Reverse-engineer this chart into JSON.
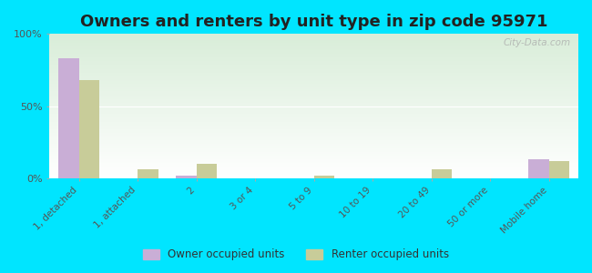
{
  "title": "Owners and renters by unit type in zip code 95971",
  "categories": [
    "1, detached",
    "1, attached",
    "2",
    "3 or 4",
    "5 to 9",
    "10 to 19",
    "20 to 49",
    "50 or more",
    "Mobile home"
  ],
  "owner_values": [
    83,
    0,
    2,
    0,
    0,
    0,
    0,
    0,
    13
  ],
  "renter_values": [
    68,
    6,
    10,
    0,
    2,
    0,
    6,
    0,
    12
  ],
  "owner_color": "#c9aed6",
  "renter_color": "#c8cc99",
  "background_color": "#00e5ff",
  "ylim": [
    0,
    100
  ],
  "yticks": [
    0,
    50,
    100
  ],
  "ytick_labels": [
    "0%",
    "50%",
    "100%"
  ],
  "watermark": "City-Data.com",
  "legend_owner": "Owner occupied units",
  "legend_renter": "Renter occupied units",
  "title_fontsize": 13,
  "bar_width": 0.35
}
